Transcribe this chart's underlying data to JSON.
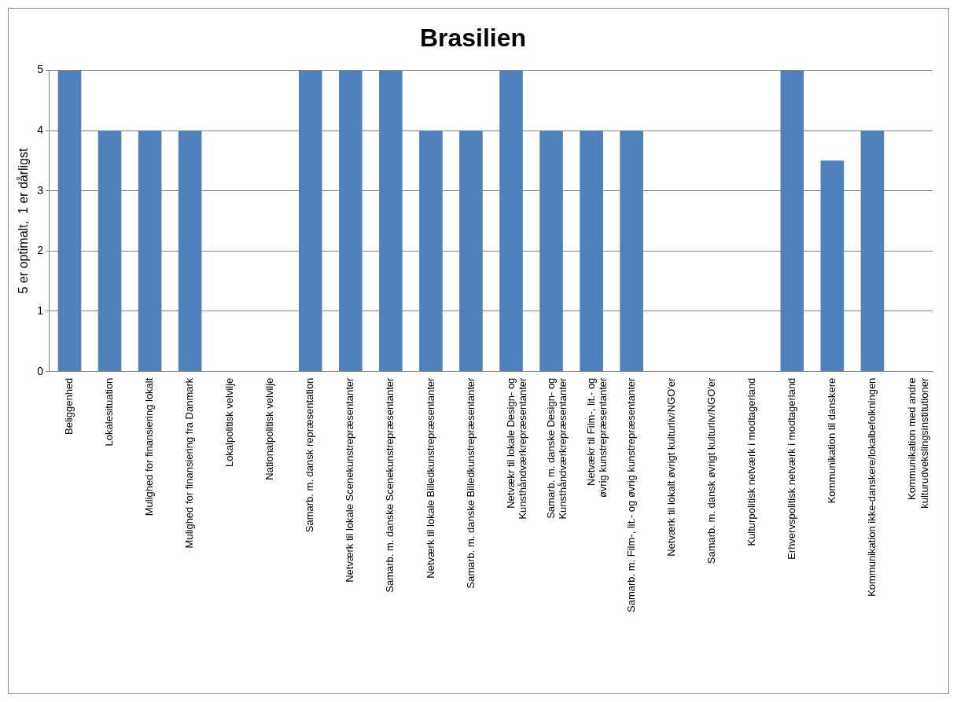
{
  "chart_data": {
    "type": "bar",
    "title": "Brasilien",
    "ylabel": "5 er optimalt,  1 er dårligst",
    "categories": [
      "Beliggenhed",
      "Lokalesituation",
      "Mulighed for finansiering lokalt",
      "Mulighed for finansiering fra Danmark",
      "Lokalpolitisk velvilje",
      "Nationalpolitisk velvilje",
      "Samarb. m. dansk repræsentation",
      "Netværk til lokale Scenekunstrepræsentanter",
      "Samarb. m. danske Scenekunstrepræsentanter",
      "Netværk til lokale Billedkunstrepræsentanter",
      "Samarb. m. danske Billedkunstrepræsentanter",
      "Netvækr til lokale Design- og Kunsthåndværkrepræsentanter",
      "Samarb. m. danske Design- og Kunsthåndværkrepræsentanter",
      "Netvækr til Film-, lit.- og øvrig kunstrepræsentanter",
      "Samarb. m. Film-, lit.- og øvrig kunstrepræsentanter",
      "Netværk til lokalt øvrigt kulturliv/NGO'er",
      "Samarb. m. dansk øvrigt kulturliv/NGO'er",
      "Kulturpolitisk netværk i modtagerland",
      "Erhvervspolitisk netværk i modtagerland",
      "Kommunikation til danskere",
      "Kommunikation ikke-danskere/lokalbefolkningen",
      "Kommunikation med andre kulturudvekslingsinstitutioner"
    ],
    "values": [
      5,
      4,
      4,
      4,
      0,
      0,
      5,
      5,
      5,
      4,
      4,
      5,
      4,
      4,
      4,
      0,
      0,
      0,
      5,
      3.5,
      4,
      0
    ],
    "color": "#4f81bd",
    "ylim": [
      0,
      5
    ],
    "yticks": [
      0,
      1,
      2,
      3,
      4,
      5
    ],
    "grid": "y"
  }
}
